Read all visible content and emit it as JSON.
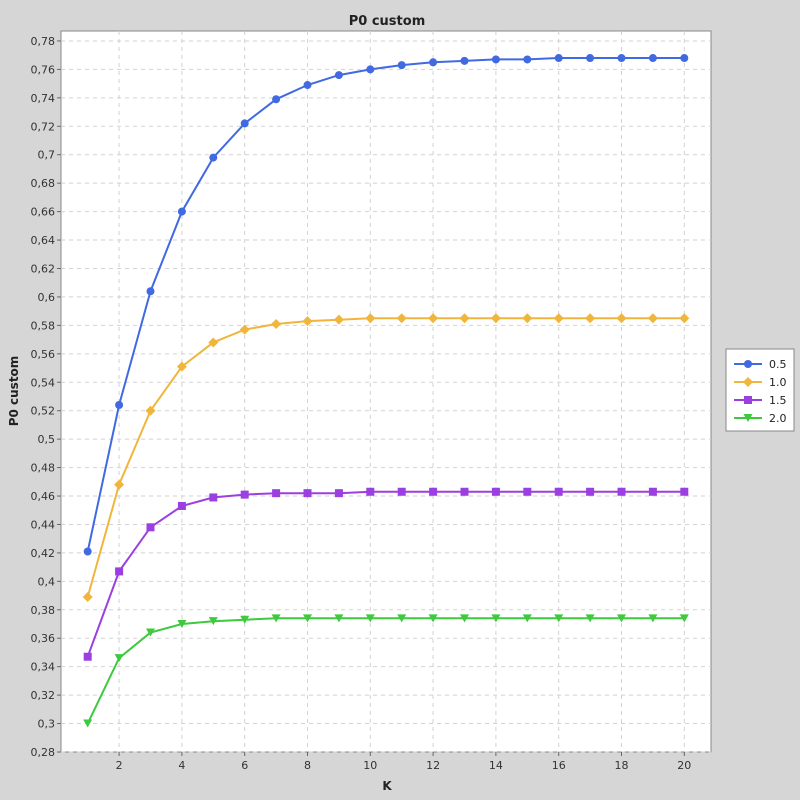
{
  "chart_data": {
    "type": "line",
    "title": "P0 custom",
    "xlabel": "K",
    "ylabel": "P0 custom",
    "xlim": [
      0.15,
      20.85
    ],
    "ylim": [
      0.28,
      0.787
    ],
    "x_ticks": [
      2,
      4,
      6,
      8,
      10,
      12,
      14,
      16,
      18,
      20
    ],
    "x_tick_labels": [
      "2",
      "4",
      "6",
      "8",
      "10",
      "12",
      "14",
      "16",
      "18",
      "20"
    ],
    "y_ticks": [
      0.28,
      0.3,
      0.32,
      0.34,
      0.36,
      0.38,
      0.4,
      0.42,
      0.44,
      0.46,
      0.48,
      0.5,
      0.52,
      0.54,
      0.56,
      0.58,
      0.6,
      0.62,
      0.64,
      0.66,
      0.68,
      0.7,
      0.72,
      0.74,
      0.76,
      0.78
    ],
    "y_tick_labels": [
      "0,28",
      "0,3",
      "0,32",
      "0,34",
      "0,36",
      "0,38",
      "0,4",
      "0,42",
      "0,44",
      "0,46",
      "0,48",
      "0,5",
      "0,52",
      "0,54",
      "0,56",
      "0,58",
      "0,6",
      "0,62",
      "0,64",
      "0,66",
      "0,68",
      "0,7",
      "0,72",
      "0,74",
      "0,76",
      "0,78"
    ],
    "grid": true,
    "legend_position": "right",
    "x": [
      1,
      2,
      3,
      4,
      5,
      6,
      7,
      8,
      9,
      10,
      11,
      12,
      13,
      14,
      15,
      16,
      17,
      18,
      19,
      20
    ],
    "series": [
      {
        "name": "0.5",
        "color": "#4169e1",
        "marker": "circle",
        "values": [
          0.421,
          0.524,
          0.604,
          0.66,
          0.698,
          0.722,
          0.739,
          0.749,
          0.756,
          0.76,
          0.763,
          0.765,
          0.766,
          0.767,
          0.767,
          0.768,
          0.768,
          0.768,
          0.768,
          0.768
        ]
      },
      {
        "name": "1.0",
        "color": "#f0b63c",
        "marker": "diamond",
        "values": [
          0.389,
          0.468,
          0.52,
          0.551,
          0.568,
          0.577,
          0.581,
          0.583,
          0.584,
          0.585,
          0.585,
          0.585,
          0.585,
          0.585,
          0.585,
          0.585,
          0.585,
          0.585,
          0.585,
          0.585
        ]
      },
      {
        "name": "1.5",
        "color": "#9b3fe0",
        "marker": "square",
        "values": [
          0.347,
          0.407,
          0.438,
          0.453,
          0.459,
          0.461,
          0.462,
          0.462,
          0.462,
          0.463,
          0.463,
          0.463,
          0.463,
          0.463,
          0.463,
          0.463,
          0.463,
          0.463,
          0.463,
          0.463
        ]
      },
      {
        "name": "2.0",
        "color": "#3ec93e",
        "marker": "triangle-down",
        "values": [
          0.3,
          0.346,
          0.364,
          0.37,
          0.372,
          0.373,
          0.374,
          0.374,
          0.374,
          0.374,
          0.374,
          0.374,
          0.374,
          0.374,
          0.374,
          0.374,
          0.374,
          0.374,
          0.374,
          0.374
        ]
      }
    ]
  }
}
